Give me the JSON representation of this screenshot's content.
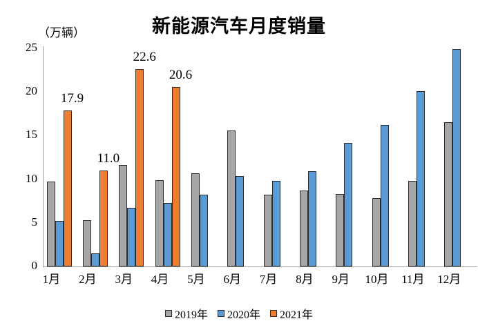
{
  "title": "新能源汽车月度销量",
  "unit_label": "（万辆）",
  "colors": {
    "series_2019": "#a6a6a6",
    "series_2020": "#5b9bd5",
    "series_2021": "#ed7d31",
    "bar_outline": "#2b2b2b",
    "axis_line": "#9d9d9d",
    "text": "#000000",
    "background": "#ffffff"
  },
  "chart_data": {
    "type": "bar",
    "title": "新能源汽车月度销量",
    "ylabel": "（万辆）",
    "xlabel": "",
    "categories": [
      "1月",
      "2月",
      "3月",
      "4月",
      "5月",
      "6月",
      "7月",
      "8月",
      "9月",
      "10月",
      "11月",
      "12月"
    ],
    "series": [
      {
        "name": "2019年",
        "color": "#a6a6a6",
        "values": [
          9.7,
          5.3,
          11.6,
          9.9,
          10.7,
          15.6,
          8.2,
          8.7,
          8.3,
          7.8,
          9.8,
          16.5
        ]
      },
      {
        "name": "2020年",
        "color": "#5b9bd5",
        "values": [
          5.2,
          1.5,
          6.7,
          7.3,
          8.2,
          10.4,
          9.8,
          10.9,
          14.2,
          16.2,
          20.1,
          24.9
        ]
      },
      {
        "name": "2021年",
        "color": "#ed7d31",
        "values": [
          17.9,
          11.0,
          22.6,
          20.6,
          null,
          null,
          null,
          null,
          null,
          null,
          null,
          null
        ],
        "data_labels": [
          "17.9",
          "11.0",
          "22.6",
          "20.6"
        ]
      }
    ],
    "yticks": [
      0,
      5,
      10,
      15,
      20,
      25
    ],
    "ylim": [
      0,
      25
    ],
    "grid": false,
    "legend_position": "bottom",
    "legend_labels": [
      "2019年",
      "2020年",
      "2021年"
    ]
  }
}
